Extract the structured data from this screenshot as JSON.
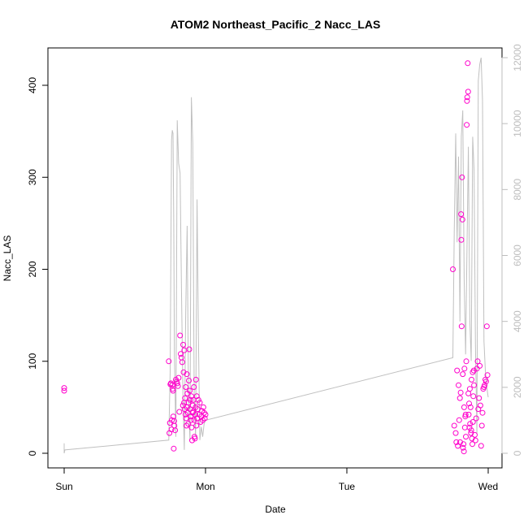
{
  "chart_data": {
    "type": "scatter",
    "title": "ATOM2 Northeast_Pacific_2 Nacc_LAS",
    "xlabel": "Date",
    "ylabel": "Nacc_LAS",
    "x_ticks": [
      {
        "label": "Sun",
        "day": 0
      },
      {
        "label": "Mon",
        "day": 1
      },
      {
        "label": "Tue",
        "day": 2
      },
      {
        "label": "Wed",
        "day": 3
      }
    ],
    "xlim": [
      0,
      3
    ],
    "ylim_left": [
      0,
      420
    ],
    "ylim_right": [
      0,
      12000
    ],
    "y_ticks_left": [
      0,
      100,
      200,
      300,
      400
    ],
    "y_ticks_right": [
      0,
      2000,
      4000,
      6000,
      8000,
      10000,
      12000
    ],
    "grid": false,
    "colors": {
      "points": "#ff00cc",
      "line": "#c0c0c0",
      "right_axis": "#bdbdbd"
    },
    "series": [
      {
        "axis": "left",
        "style": "points",
        "x": [
          0.0,
          0.0,
          0.74,
          0.745,
          0.748,
          0.752,
          0.755,
          0.76,
          0.762,
          0.765,
          0.768,
          0.77,
          0.772,
          0.775,
          0.778,
          0.78,
          0.785,
          0.79,
          0.795,
          0.8,
          0.805,
          0.81,
          0.815,
          0.82,
          0.825,
          0.83,
          0.835,
          0.84,
          0.842,
          0.845,
          0.848,
          0.85,
          0.852,
          0.855,
          0.858,
          0.86,
          0.862,
          0.865,
          0.868,
          0.87,
          0.872,
          0.875,
          0.878,
          0.88,
          0.882,
          0.885,
          0.888,
          0.89,
          0.892,
          0.895,
          0.898,
          0.9,
          0.902,
          0.905,
          0.908,
          0.91,
          0.912,
          0.915,
          0.918,
          0.92,
          0.922,
          0.925,
          0.928,
          0.93,
          0.932,
          0.935,
          0.938,
          0.94,
          0.945,
          0.95,
          0.955,
          0.96,
          0.965,
          0.97,
          0.975,
          0.98,
          0.985,
          0.99,
          0.995,
          1.0,
          2.75,
          2.76,
          2.77,
          2.775,
          2.78,
          2.785,
          2.79,
          2.795,
          2.8,
          2.802,
          2.805,
          2.808,
          2.81,
          2.812,
          2.815,
          2.818,
          2.82,
          2.822,
          2.825,
          2.828,
          2.83,
          2.832,
          2.835,
          2.838,
          2.84,
          2.842,
          2.845,
          2.848,
          2.85,
          2.852,
          2.855,
          2.858,
          2.86,
          2.862,
          2.865,
          2.868,
          2.87,
          2.872,
          2.875,
          2.878,
          2.88,
          2.882,
          2.885,
          2.888,
          2.89,
          2.892,
          2.895,
          2.898,
          2.9,
          2.905,
          2.91,
          2.915,
          2.92,
          2.925,
          2.93,
          2.935,
          2.94,
          2.945,
          2.95,
          2.955,
          2.96,
          2.965,
          2.97,
          2.975,
          2.98,
          2.985,
          2.99,
          2.995
        ],
        "y": [
          71,
          68,
          100,
          22,
          33,
          75,
          76,
          26,
          36,
          74,
          70,
          68,
          40,
          5,
          35,
          30,
          25,
          80,
          78,
          76,
          73,
          82,
          45,
          128,
          108,
          104,
          99,
          52,
          118,
          88,
          55,
          112,
          48,
          60,
          42,
          72,
          38,
          30,
          86,
          50,
          65,
          44,
          32,
          55,
          79,
          113,
          68,
          48,
          58,
          40,
          36,
          62,
          28,
          14,
          44,
          52,
          45,
          58,
          72,
          36,
          18,
          16,
          42,
          50,
          80,
          30,
          62,
          38,
          48,
          58,
          42,
          55,
          34,
          40,
          46,
          36,
          50,
          44,
          38,
          42,
          200,
          30,
          22,
          12,
          90,
          8,
          74,
          36,
          60,
          12,
          66,
          260,
          232,
          138,
          300,
          254,
          86,
          6,
          10,
          2,
          50,
          92,
          28,
          40,
          42,
          18,
          100,
          357,
          383,
          387,
          424,
          393,
          65,
          42,
          54,
          28,
          70,
          32,
          50,
          22,
          25,
          80,
          16,
          10,
          88,
          34,
          62,
          90,
          74,
          20,
          14,
          38,
          92,
          100,
          48,
          60,
          95,
          52,
          8,
          30,
          44,
          70,
          72,
          74,
          80,
          78,
          138,
          85
        ]
      },
      {
        "axis": "right",
        "style": "line",
        "x": [
          0.0,
          0.0,
          0.005,
          0.74,
          0.75,
          0.76,
          0.765,
          0.77,
          0.775,
          0.78,
          0.79,
          0.8,
          0.81,
          0.82,
          0.83,
          0.84,
          0.85,
          0.86,
          0.87,
          0.88,
          0.89,
          0.9,
          0.91,
          0.92,
          0.93,
          0.94,
          0.95,
          0.96,
          0.97,
          0.98,
          0.99,
          1.0,
          2.75,
          2.76,
          2.77,
          2.78,
          2.79,
          2.8,
          2.81,
          2.82,
          2.83,
          2.84,
          2.85,
          2.86,
          2.87,
          2.88,
          2.89,
          2.9,
          2.91,
          2.92,
          2.93,
          2.94,
          2.95,
          2.96,
          2.97,
          2.98,
          2.99,
          3.0
        ],
        "y": [
          300,
          0,
          100,
          400,
          2500,
          9500,
          9800,
          9700,
          7000,
          3000,
          500,
          10100,
          8800,
          8500,
          5000,
          1800,
          100,
          4200,
          6900,
          1500,
          400,
          10800,
          9400,
          1600,
          500,
          7700,
          3500,
          400,
          800,
          500,
          900,
          1000,
          2900,
          6700,
          9700,
          6400,
          9000,
          4000,
          9600,
          10400,
          5300,
          3000,
          6200,
          9300,
          4000,
          2800,
          9600,
          8600,
          3300,
          600,
          11300,
          11800,
          12000,
          10700,
          3400,
          2500,
          2000,
          1700
        ]
      }
    ]
  }
}
